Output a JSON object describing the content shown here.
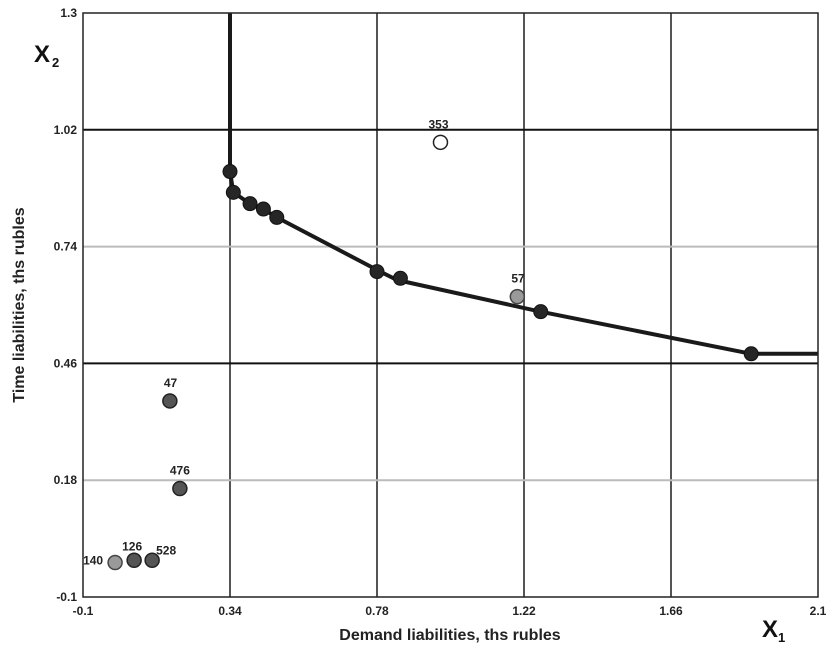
{
  "chart_data": {
    "type": "scatter",
    "xlabel": "Demand liabilities, ths rubles",
    "ylabel": "Time liabilities, ths rubles",
    "x_var": {
      "main": "X",
      "sub": "1"
    },
    "y_var": {
      "main": "X",
      "sub": "2"
    },
    "xlim": [
      -0.1,
      2.1
    ],
    "ylim": [
      -0.1,
      1.3
    ],
    "x_ticks": [
      -0.1,
      0.34,
      0.78,
      1.22,
      1.66,
      2.1
    ],
    "x_tick_labels": [
      "-0.1",
      "0.34",
      "0.78",
      "1.22",
      "1.66",
      "2.1"
    ],
    "y_ticks": [
      -0.1,
      0.18,
      0.46,
      0.74,
      1.02,
      1.3
    ],
    "y_tick_labels": [
      "-0.1",
      "0.18",
      "0.46",
      "0.74",
      "1.02",
      "1.3"
    ],
    "grid": true,
    "frontier": {
      "points": [
        [
          0.34,
          1.3
        ],
        [
          0.34,
          0.92
        ],
        [
          0.35,
          0.87
        ],
        [
          0.4,
          0.843
        ],
        [
          0.44,
          0.83
        ],
        [
          0.48,
          0.81
        ],
        [
          0.79,
          0.68
        ],
        [
          0.84,
          0.66
        ],
        [
          1.27,
          0.584
        ],
        [
          1.9,
          0.483
        ],
        [
          2.1,
          0.483
        ]
      ]
    },
    "efficient_points": [
      {
        "x": 0.34,
        "y": 0.92
      },
      {
        "x": 0.35,
        "y": 0.87
      },
      {
        "x": 0.4,
        "y": 0.843
      },
      {
        "x": 0.44,
        "y": 0.83
      },
      {
        "x": 0.48,
        "y": 0.81
      },
      {
        "x": 0.78,
        "y": 0.68
      },
      {
        "x": 0.85,
        "y": 0.664
      },
      {
        "x": 1.27,
        "y": 0.584
      },
      {
        "x": 1.9,
        "y": 0.483
      }
    ],
    "labeled_points": [
      {
        "label": "353",
        "x": 0.97,
        "y": 0.99,
        "style": "open"
      },
      {
        "label": "57",
        "x": 1.2,
        "y": 0.62,
        "style": "light"
      },
      {
        "label": "47",
        "x": 0.16,
        "y": 0.37,
        "style": "dark"
      },
      {
        "label": "476",
        "x": 0.19,
        "y": 0.16,
        "style": "dark"
      },
      {
        "label": "126",
        "x": 0.08,
        "y": -0.012,
        "style": "dark"
      },
      {
        "label": "528",
        "x": 0.08,
        "y": -0.012,
        "style": "dark"
      },
      {
        "label": "140",
        "x": 0.02,
        "y": -0.015,
        "style": "light"
      }
    ],
    "colors": {
      "frontier": "#1a1a1a",
      "point_dark": "#262626",
      "point_mid": "#555555",
      "point_light": "#9a9a9a",
      "point_open": "#ffffff",
      "grid_dark": "#555555",
      "grid_light": "#bbbbbb"
    }
  }
}
